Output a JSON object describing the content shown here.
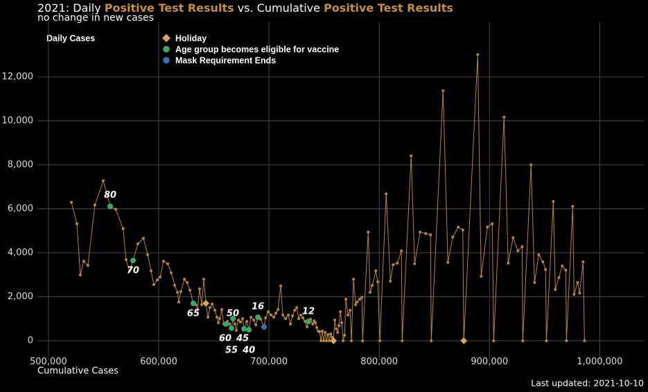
{
  "chart_data": {
    "type": "line",
    "title_parts": [
      "2021: Daily ",
      "Positive Test Results",
      " vs. Cumulative ",
      "Positive Test Results"
    ],
    "title_highlight_color": "#c48f3f",
    "subtitle": "no change in new cases",
    "x_label": "Cumulative Cases",
    "y_label": "Daily Cases",
    "caption": "Last updated: 2021-10-10",
    "color": "#b8873d",
    "grid": true,
    "xlim": [
      490000,
      1040000
    ],
    "ylim": [
      -900,
      14500
    ],
    "xticks": [
      {
        "value": 500000,
        "label": "500,000"
      },
      {
        "value": 600000,
        "label": "600,000"
      },
      {
        "value": 700000,
        "label": "700,000"
      },
      {
        "value": 800000,
        "label": "800,000"
      },
      {
        "value": 900000,
        "label": "900,000"
      },
      {
        "value": 1000000,
        "label": "1,000,000"
      }
    ],
    "yticks": [
      0,
      {
        "value": 2000,
        "label": "2,000"
      },
      {
        "value": 4000,
        "label": "4,000"
      },
      {
        "value": 6000,
        "label": "6,000"
      },
      {
        "value": 8000,
        "label": "8,000"
      },
      {
        "value": 10000,
        "label": "10,000"
      },
      {
        "value": 12000,
        "label": "12,000"
      }
    ],
    "x": [
      520800,
      525800,
      528900,
      532000,
      535800,
      542100,
      549700,
      556000,
      561000,
      567700,
      570400,
      573600,
      576700,
      581100,
      586200,
      590000,
      593100,
      595600,
      598700,
      601300,
      604400,
      608200,
      611300,
      614500,
      617000,
      618200,
      620100,
      623300,
      625800,
      628300,
      631400,
      633900,
      635200,
      637100,
      639000,
      640900,
      642800,
      644700,
      646500,
      648400,
      651000,
      652800,
      654100,
      655300,
      657200,
      659100,
      661000,
      662300,
      664200,
      666000,
      667300,
      669200,
      670400,
      672300,
      674200,
      676100,
      677400,
      679900,
      681800,
      683600,
      686200,
      688100,
      690000,
      692500,
      695600,
      696900,
      699400,
      701900,
      704400,
      706300,
      708200,
      710700,
      712600,
      715100,
      717600,
      719500,
      721400,
      723300,
      725200,
      727000,
      728900,
      730800,
      732700,
      734600,
      735800,
      737700,
      739600,
      740900,
      742100,
      743400,
      744700,
      745900,
      747200,
      748400,
      749700,
      751000,
      752200,
      753500,
      754700,
      756000,
      757200,
      758500,
      759700,
      761000,
      762300,
      763500,
      764800,
      766000,
      767300,
      768600,
      769800,
      771700,
      773600,
      774800,
      776700,
      778600,
      779900,
      782400,
      784300,
      784900,
      790000,
      791800,
      793700,
      796900,
      798700,
      800600,
      806300,
      810100,
      812600,
      816400,
      820100,
      820800,
      829000,
      832100,
      837100,
      842100,
      846500,
      847200,
      857900,
      862300,
      866700,
      871700,
      875800,
      876700,
      889300,
      892500,
      898100,
      902500,
      903800,
      913200,
      917000,
      921400,
      925800,
      929600,
      930200,
      937700,
      940900,
      944700,
      948400,
      950900,
      951600,
      957900,
      959700,
      962900,
      966000,
      969200,
      969800,
      975500,
      976700,
      979900,
      981800,
      984900,
      986200
    ],
    "values": [
      6300,
      5320,
      2990,
      3620,
      3430,
      6170,
      7280,
      6110,
      5980,
      5100,
      3690,
      3180,
      3650,
      4410,
      4660,
      3910,
      3180,
      2550,
      2770,
      2900,
      3620,
      3500,
      3090,
      2520,
      2200,
      1760,
      2240,
      2800,
      2650,
      2300,
      1700,
      1640,
      1420,
      2360,
      1640,
      2800,
      1700,
      1070,
      1510,
      1670,
      1390,
      1070,
      820,
      1010,
      1420,
      760,
      760,
      880,
      760,
      570,
      1010,
      760,
      470,
      940,
      850,
      1010,
      540,
      880,
      500,
      1070,
      940,
      720,
      1070,
      980,
      630,
      1040,
      1320,
      1170,
      1070,
      1260,
      1420,
      2490,
      1170,
      1010,
      1170,
      760,
      1130,
      1390,
      1510,
      1010,
      1170,
      1040,
      880,
      630,
      880,
      980,
      760,
      910,
      820,
      600,
      440,
      410,
      0,
      440,
      0,
      380,
      0,
      280,
      0,
      310,
      160,
      0,
      940,
      540,
      380,
      690,
      1320,
      820,
      0,
      250,
      1890,
      1170,
      1390,
      0,
      2800,
      1640,
      1760,
      1890,
      1980,
      0,
      4940,
      2200,
      2520,
      3180,
      2680,
      0,
      6680,
      2710,
      3460,
      3530,
      4090,
      0,
      8410,
      3500,
      4940,
      4880,
      4820,
      0,
      11370,
      3560,
      4720,
      5170,
      5040,
      0,
      13010,
      2930,
      5170,
      5320,
      0,
      10170,
      3530,
      4690,
      4090,
      4280,
      0,
      8000,
      2650,
      3910,
      3590,
      3240,
      0,
      6330,
      2330,
      2870,
      3400,
      3210,
      0,
      6110,
      2110,
      2650,
      2170,
      3590,
      0
    ],
    "events": [
      {
        "name": "Holiday",
        "color": "#d9a55a",
        "marker": "diamond",
        "x": [
          642800,
          758500,
          876700
        ],
        "values": [
          1700,
          0,
          0
        ]
      },
      {
        "name": "Age group becomes eligible for vaccine",
        "color": "#3aa86b",
        "marker": "circle",
        "x": [
          556000,
          576700,
          631400,
          661000,
          666000,
          667300,
          677400,
          681800,
          690000,
          735800
        ],
        "values": [
          6110,
          3650,
          1700,
          760,
          570,
          1010,
          540,
          500,
          1070,
          880
        ],
        "labels": [
          "80",
          "70",
          "65",
          "60",
          "55",
          "50",
          "45",
          "40",
          "16",
          "12"
        ]
      },
      {
        "name": "Mask Requirement Ends",
        "color": "#3a6fb5",
        "marker": "circle",
        "x": [
          695600
        ],
        "values": [
          630
        ]
      }
    ]
  }
}
